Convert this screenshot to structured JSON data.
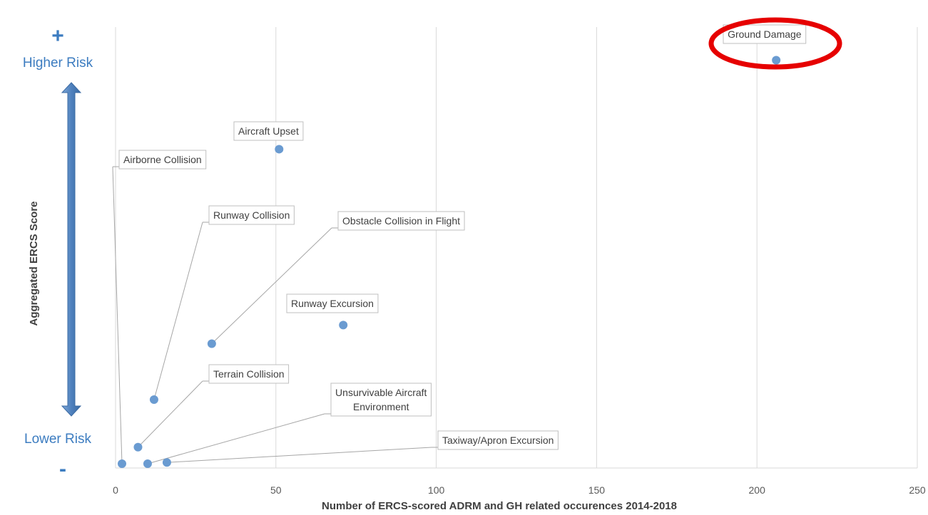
{
  "chart_data": {
    "type": "scatter",
    "title": "",
    "xlabel": "Number of ERCS-scored ADRM and GH related occurences 2014-2018",
    "ylabel": "Aggregated ERCS Score",
    "xlim": [
      0,
      250
    ],
    "x_ticks": [
      "0",
      "50",
      "100",
      "150",
      "200",
      "250"
    ],
    "grid": "vertical",
    "points": [
      {
        "label": "Ground Damage",
        "x": 206,
        "y": 0.975
      },
      {
        "label": "Aircraft Upset",
        "x": 51,
        "y": 0.76
      },
      {
        "label": "Airborne Collision",
        "x": 2,
        "y": 0.0
      },
      {
        "label": "Runway Collision",
        "x": 12,
        "y": 0.155
      },
      {
        "label": "Obstacle Collision in Flight",
        "x": 30,
        "y": 0.29
      },
      {
        "label": "Runway Excursion",
        "x": 71,
        "y": 0.335
      },
      {
        "label": "Terrain Collision",
        "x": 7,
        "y": 0.04
      },
      {
        "label": "Unsurvivable Aircraft Environment",
        "x": 10,
        "y": 0.0
      },
      {
        "label": "Taxiway/Apron Excursion",
        "x": 16,
        "y": 0.003
      }
    ],
    "highlight": "Ground Damage",
    "highlight_color": "#e60000",
    "point_color": "#6a9bd1",
    "risk_scale": {
      "high_sign": "+",
      "high_label": "Higher Risk",
      "low_label": "Lower Risk",
      "low_sign": "-",
      "arrow_color": "#4f81bd"
    }
  }
}
